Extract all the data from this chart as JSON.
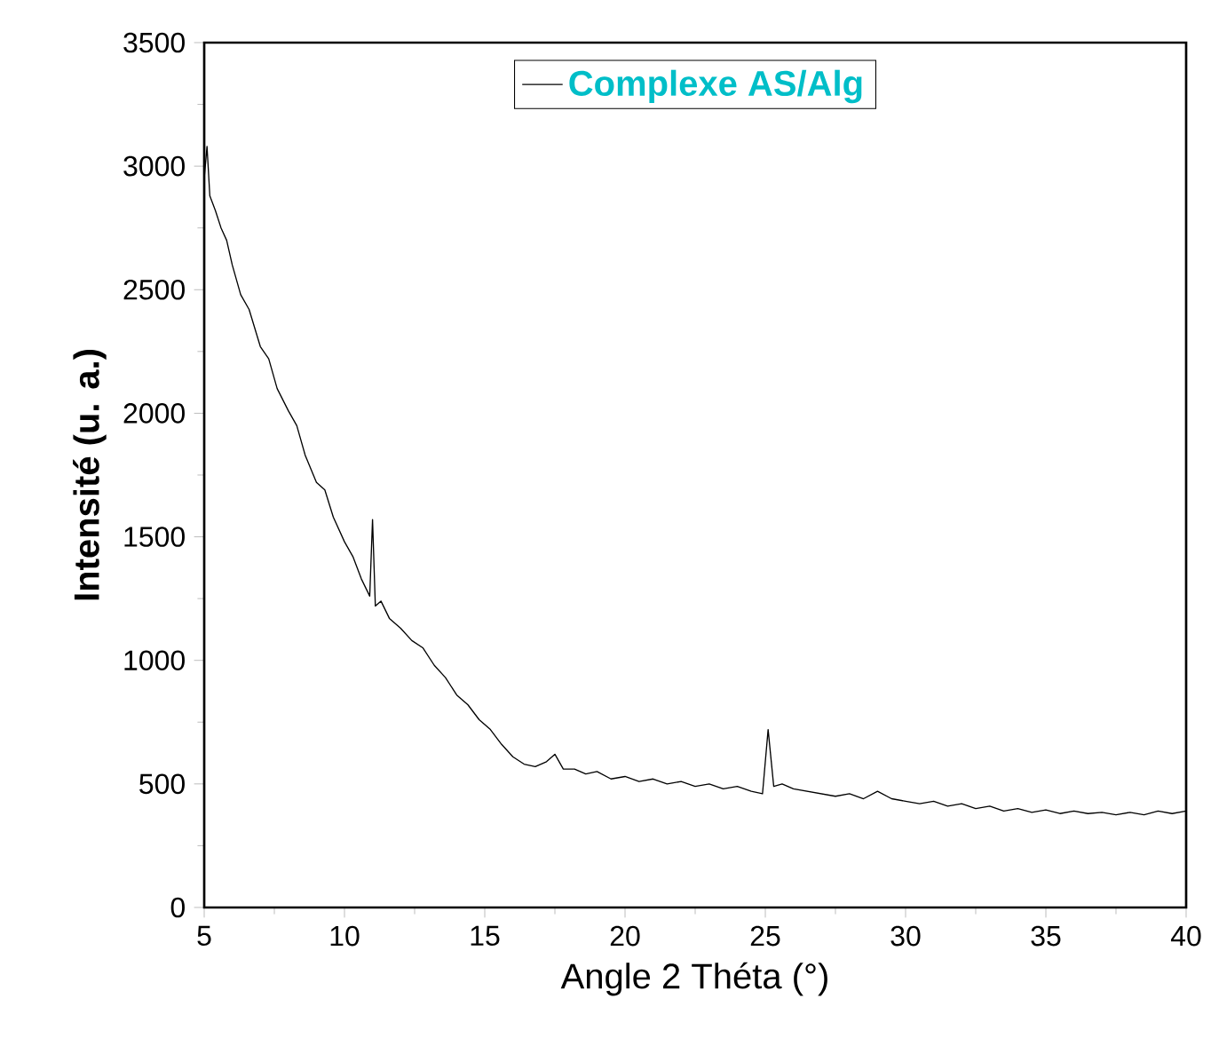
{
  "chart_data": {
    "type": "line",
    "xlabel": "Angle 2 Théta (°)",
    "ylabel": "Intensité (u. a.)",
    "xlim": [
      5,
      40
    ],
    "ylim": [
      0,
      3500
    ],
    "xticks": [
      5,
      10,
      15,
      20,
      25,
      30,
      35,
      40
    ],
    "yticks": [
      0,
      500,
      1000,
      1500,
      2000,
      2500,
      3000,
      3500
    ],
    "legend": "top",
    "grid": false,
    "marker": "none",
    "line_style": "solid",
    "series": [
      {
        "name": "Complexe AS/Alg",
        "color": "#000000",
        "x": [
          5,
          5.1,
          5.2,
          5.4,
          5.6,
          5.8,
          6,
          6.3,
          6.6,
          7,
          7.3,
          7.6,
          8,
          8.3,
          8.6,
          9,
          9.3,
          9.6,
          10,
          10.3,
          10.6,
          10.9,
          11,
          11.1,
          11.3,
          11.6,
          12,
          12.4,
          12.8,
          13.2,
          13.6,
          14,
          14.4,
          14.8,
          15.2,
          15.6,
          16,
          16.4,
          16.8,
          17.2,
          17.5,
          17.8,
          18.2,
          18.6,
          19,
          19.5,
          20,
          20.5,
          21,
          21.5,
          22,
          22.5,
          23,
          23.5,
          24,
          24.5,
          24.9,
          25.1,
          25.3,
          25.6,
          26,
          26.5,
          27,
          27.5,
          28,
          28.5,
          29,
          29.5,
          30,
          30.5,
          31,
          31.5,
          32,
          32.5,
          33,
          33.5,
          34,
          34.5,
          35,
          35.5,
          36,
          36.5,
          37,
          37.5,
          38,
          38.5,
          39,
          39.5,
          40
        ],
        "values": [
          2950,
          3080,
          2880,
          2820,
          2750,
          2700,
          2600,
          2480,
          2420,
          2270,
          2220,
          2100,
          2010,
          1950,
          1830,
          1720,
          1690,
          1580,
          1480,
          1420,
          1330,
          1260,
          1570,
          1220,
          1240,
          1170,
          1130,
          1080,
          1050,
          980,
          930,
          860,
          820,
          760,
          720,
          660,
          610,
          580,
          570,
          590,
          620,
          560,
          560,
          540,
          550,
          520,
          530,
          510,
          520,
          500,
          510,
          490,
          500,
          480,
          490,
          470,
          460,
          720,
          490,
          500,
          480,
          470,
          460,
          450,
          460,
          440,
          470,
          440,
          430,
          420,
          430,
          410,
          420,
          400,
          410,
          390,
          400,
          385,
          395,
          380,
          390,
          380,
          385,
          375,
          385,
          375,
          390,
          380,
          390
        ]
      }
    ]
  }
}
